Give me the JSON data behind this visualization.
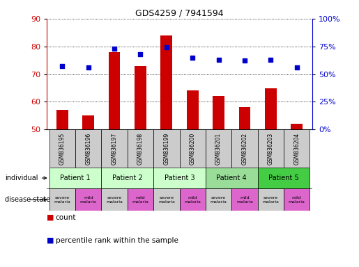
{
  "title": "GDS4259 / 7941594",
  "samples": [
    "GSM836195",
    "GSM836196",
    "GSM836197",
    "GSM836198",
    "GSM836199",
    "GSM836200",
    "GSM836201",
    "GSM836202",
    "GSM836203",
    "GSM836204"
  ],
  "counts": [
    57,
    55,
    78,
    73,
    84,
    64,
    62,
    58,
    65,
    52
  ],
  "percentile_ranks": [
    57,
    56,
    73,
    68,
    74,
    65,
    63,
    62,
    63,
    56
  ],
  "ylim_left": [
    50,
    90
  ],
  "ylim_right": [
    0,
    100
  ],
  "yticks_left": [
    50,
    60,
    70,
    80,
    90
  ],
  "yticks_right": [
    0,
    25,
    50,
    75,
    100
  ],
  "yticklabels_right": [
    "0%",
    "25%",
    "50%",
    "75%",
    "100%"
  ],
  "bar_color": "#cc0000",
  "dot_color": "#0000cc",
  "patients": [
    {
      "label": "Patient 1",
      "span": [
        0,
        2
      ],
      "color": "#ccffcc"
    },
    {
      "label": "Patient 2",
      "span": [
        2,
        4
      ],
      "color": "#ccffcc"
    },
    {
      "label": "Patient 3",
      "span": [
        4,
        6
      ],
      "color": "#ccffcc"
    },
    {
      "label": "Patient 4",
      "span": [
        6,
        8
      ],
      "color": "#99dd99"
    },
    {
      "label": "Patient 5",
      "span": [
        8,
        10
      ],
      "color": "#44cc44"
    }
  ],
  "disease_states": [
    {
      "label": "severe\nmalaria",
      "color": "#cccccc"
    },
    {
      "label": "mild\nmalaria",
      "color": "#dd66cc"
    },
    {
      "label": "severe\nmalaria",
      "color": "#cccccc"
    },
    {
      "label": "mild\nmalaria",
      "color": "#dd66cc"
    },
    {
      "label": "severe\nmalaria",
      "color": "#cccccc"
    },
    {
      "label": "mild\nmalaria",
      "color": "#dd66cc"
    },
    {
      "label": "severe\nmalaria",
      "color": "#cccccc"
    },
    {
      "label": "mild\nmalaria",
      "color": "#dd66cc"
    },
    {
      "label": "severe\nmalaria",
      "color": "#cccccc"
    },
    {
      "label": "mild\nmalaria",
      "color": "#dd66cc"
    }
  ],
  "gsm_bg_color": "#cccccc",
  "legend_count_color": "#cc0000",
  "legend_dot_color": "#0000cc"
}
